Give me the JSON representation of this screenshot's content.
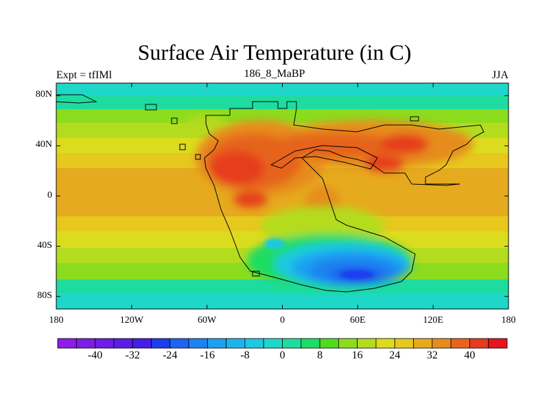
{
  "header": {
    "title": "Surface Air Temperature (in C)",
    "left_label": "Expt = tfIMl",
    "center_label": "186_8_MaBP",
    "right_label": "JJA"
  },
  "map": {
    "lon_range": [
      -180,
      180
    ],
    "lat_range": [
      -90,
      90
    ],
    "y_ticks": [
      {
        "label": "80N",
        "lat": 80
      },
      {
        "label": "40N",
        "lat": 40
      },
      {
        "label": "0",
        "lat": 0
      },
      {
        "label": "40S",
        "lat": -40
      },
      {
        "label": "80S",
        "lat": -80
      }
    ],
    "x_ticks": [
      {
        "label": "180",
        "lon": -180
      },
      {
        "label": "120W",
        "lon": -120
      },
      {
        "label": "60W",
        "lon": -60
      },
      {
        "label": "0",
        "lon": 0
      },
      {
        "label": "60E",
        "lon": 60
      },
      {
        "label": "120E",
        "lon": 120
      },
      {
        "label": "180",
        "lon": 180
      }
    ]
  },
  "colorbar": {
    "colors": [
      "#8c1ee6",
      "#7d1ee6",
      "#6e1ee6",
      "#5a1ee6",
      "#461ee6",
      "#1e3cf0",
      "#1e64f0",
      "#1e82f0",
      "#1ea0f0",
      "#1eb4eb",
      "#1ec8e1",
      "#1ed7c8",
      "#1edca0",
      "#1edc64",
      "#50dc1e",
      "#8cdc1e",
      "#b4dc1e",
      "#dcdc1e",
      "#e6c81e",
      "#e6aa1e",
      "#e68c1e",
      "#e6641e",
      "#e63c1e",
      "#e6141e"
    ],
    "tick_labels": [
      "-40",
      "-32",
      "-24",
      "-16",
      "-8",
      "0",
      "8",
      "16",
      "24",
      "32",
      "40"
    ],
    "tick_values": [
      -40,
      -32,
      -24,
      -16,
      -8,
      0,
      8,
      16,
      24,
      32,
      40
    ],
    "range": [
      -48,
      48
    ]
  }
}
